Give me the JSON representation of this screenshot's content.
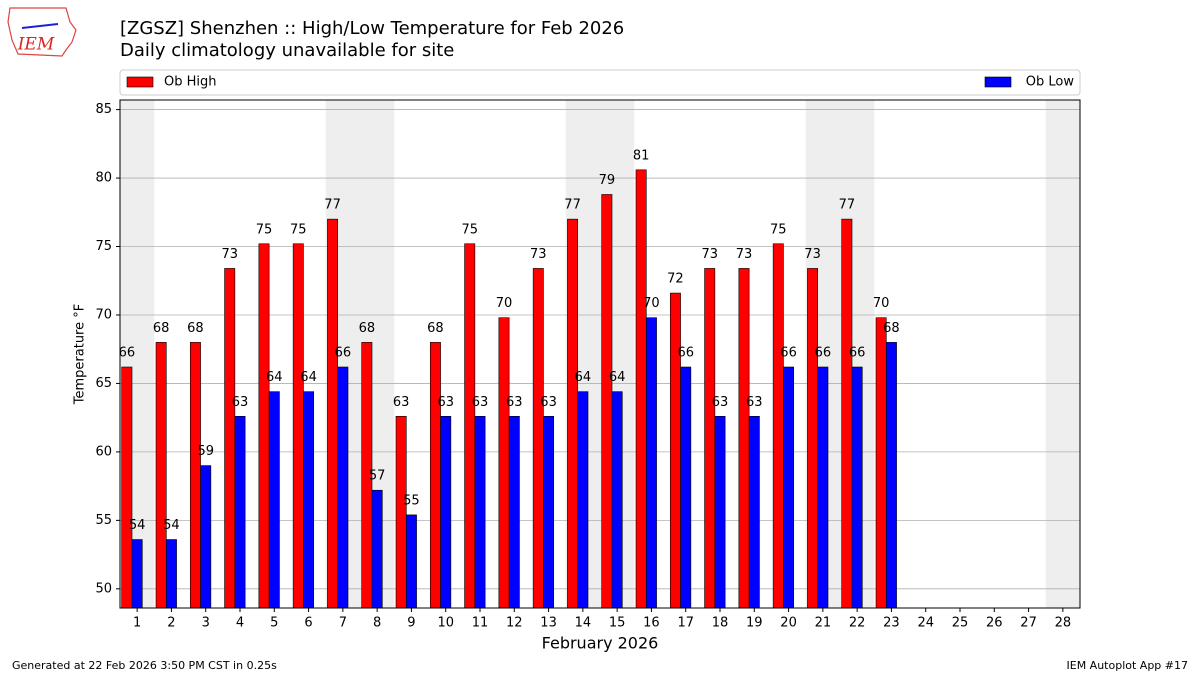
{
  "chart_data": {
    "type": "bar",
    "logo_text": "IEM",
    "title": "[ZGSZ] Shenzhen :: High/Low Temperature for Feb 2026",
    "subtitle": "Daily climatology unavailable for site",
    "x_label": "February 2026",
    "y_label": "Temperature °F",
    "categories": [
      "1",
      "2",
      "3",
      "4",
      "5",
      "6",
      "7",
      "8",
      "9",
      "10",
      "11",
      "12",
      "13",
      "14",
      "15",
      "16",
      "17",
      "18",
      "19",
      "20",
      "21",
      "22",
      "23",
      "24",
      "25",
      "26",
      "27",
      "28"
    ],
    "series": [
      {
        "name": "Ob High",
        "color": "#ff0000",
        "values": [
          66.2,
          68,
          68,
          73.4,
          75.2,
          75.2,
          77,
          68,
          62.6,
          68,
          75.2,
          69.8,
          73.4,
          77,
          78.8,
          80.6,
          71.6,
          73.4,
          73.4,
          75.2,
          73.4,
          77,
          69.8,
          null,
          null,
          null,
          null,
          null
        ],
        "value_labels": [
          "66",
          "68",
          "68",
          "73",
          "75",
          "75",
          "77",
          "68",
          "63",
          "68",
          "75",
          "70",
          "73",
          "77",
          "79",
          "81",
          "72",
          "73",
          "73",
          "75",
          "73",
          "77",
          "70",
          null,
          null,
          null,
          null,
          null
        ]
      },
      {
        "name": "Ob Low",
        "color": "#0000ff",
        "values": [
          53.6,
          53.6,
          59,
          62.6,
          64.4,
          64.4,
          66.2,
          57.2,
          55.4,
          62.6,
          62.6,
          62.6,
          62.6,
          64.4,
          64.4,
          69.8,
          66.2,
          62.6,
          62.6,
          66.2,
          66.2,
          66.2,
          68,
          null,
          null,
          null,
          null,
          null
        ],
        "value_labels": [
          "54",
          "54",
          "59",
          "63",
          "64",
          "64",
          "66",
          "57",
          "55",
          "63",
          "63",
          "63",
          "63",
          "64",
          "64",
          "70",
          "66",
          "63",
          "63",
          "66",
          "66",
          "66",
          "68",
          null,
          null,
          null,
          null,
          null
        ]
      }
    ],
    "weekend_days": [
      1,
      7,
      8,
      14,
      15,
      21,
      22,
      28
    ],
    "ylim": [
      48.6,
      85.7
    ],
    "yticks": [
      50,
      55,
      60,
      65,
      70,
      75,
      80,
      85
    ],
    "grid": true,
    "legend": "top",
    "footer_left": "Generated at 22 Feb 2026 3:50 PM CST in 0.25s",
    "footer_right": "IEM Autoplot App #17"
  }
}
